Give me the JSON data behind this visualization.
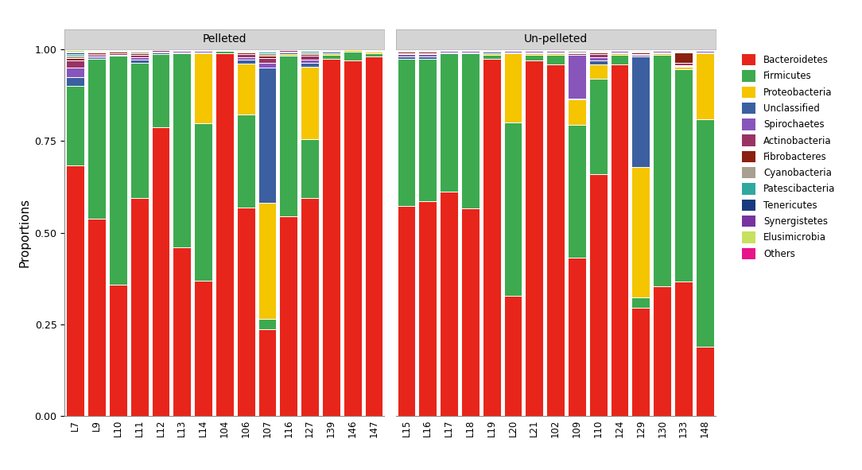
{
  "categories_pelleted": [
    "L7",
    "L9",
    "L10",
    "L11",
    "L12",
    "L13",
    "L14",
    "104",
    "106",
    "107",
    "116",
    "127",
    "139",
    "146",
    "147"
  ],
  "categories_unpelleted": [
    "L15",
    "L16",
    "L17",
    "L18",
    "L19",
    "L20",
    "L21",
    "102",
    "109",
    "110",
    "124",
    "129",
    "130",
    "133",
    "148"
  ],
  "phyla": [
    "Bacteroidetes",
    "Firmicutes",
    "Proteobacteria",
    "Unclassified",
    "Spirochaetes",
    "Actinobacteria",
    "Fibrobacteres",
    "Cyanobacteria",
    "Patescibacteria",
    "Tenericutes",
    "Synergistetes",
    "Elusimicrobia",
    "Others"
  ],
  "colors": [
    "#E8251A",
    "#3DAA4F",
    "#F5C500",
    "#3B5FA0",
    "#8855BB",
    "#993366",
    "#8B2010",
    "#A8A090",
    "#30A8A0",
    "#1A3A80",
    "#7833A0",
    "#C8E060",
    "#E8148A"
  ],
  "facet_label_pelleted": "Pelleted",
  "facet_label_unpelleted": "Un-pelleted",
  "ylabel": "Proportions",
  "ylim": [
    0.0,
    1.0
  ],
  "yticks": [
    0.0,
    0.25,
    0.5,
    0.75,
    1.0
  ],
  "background_color": "#FFFFFF",
  "facet_bg_color": "#D4D4D4",
  "bar_width": 0.85
}
